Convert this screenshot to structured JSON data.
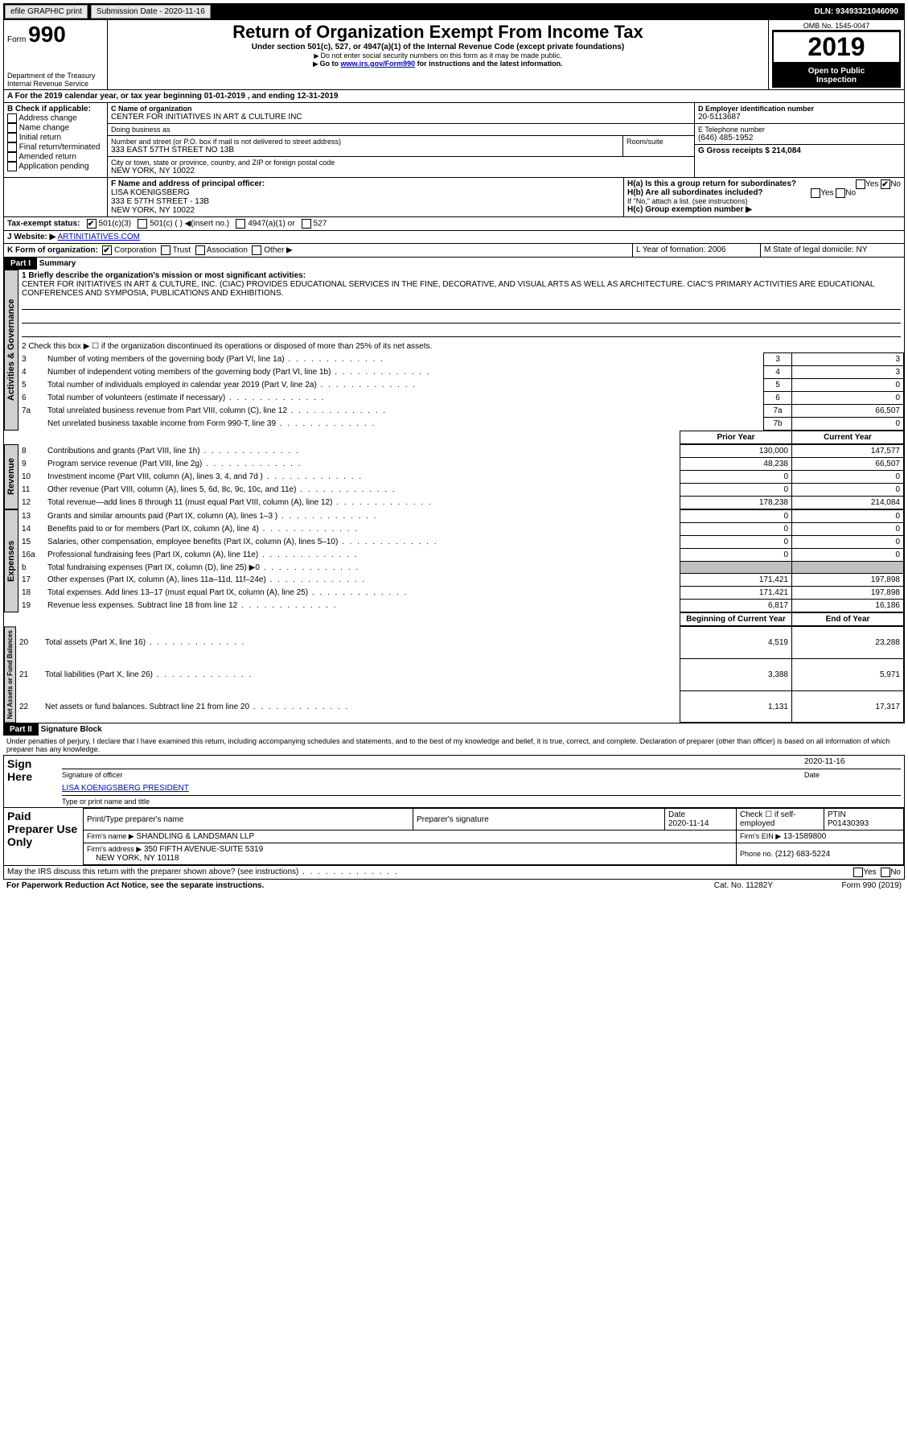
{
  "topbar": {
    "efile": "efile GRAPHIC print",
    "submission": "Submission Date - 2020-11-16",
    "dln": "DLN: 93493321046090"
  },
  "header": {
    "form_prefix": "Form",
    "form_number": "990",
    "title": "Return of Organization Exempt From Income Tax",
    "subtitle": "Under section 501(c), 527, or 4947(a)(1) of the Internal Revenue Code (except private foundations)",
    "note1": "Do not enter social security numbers on this form as it may be made public.",
    "note2_prefix": "Go to ",
    "note2_link": "www.irs.gov/Form990",
    "note2_suffix": " for instructions and the latest information.",
    "omb": "OMB No. 1545-0047",
    "year": "2019",
    "inspect1": "Open to Public",
    "inspect2": "Inspection",
    "dept": "Department of the Treasury",
    "irs": "Internal Revenue Service"
  },
  "line_a": "For the 2019 calendar year, or tax year beginning 01-01-2019   , and ending 12-31-2019",
  "box_b": {
    "label": "B Check if applicable:",
    "items": [
      "Address change",
      "Name change",
      "Initial return",
      "Final return/terminated",
      "Amended return",
      "Application pending"
    ]
  },
  "box_c": {
    "label": "C Name of organization",
    "org": "CENTER FOR INITIATIVES IN ART & CULTURE INC",
    "dba_label": "Doing business as",
    "dba": "",
    "street_label": "Number and street (or P.O. box if mail is not delivered to street address)",
    "street": "333 EAST 57TH STREET NO 13B",
    "room_label": "Room/suite",
    "city_label": "City or town, state or province, country, and ZIP or foreign postal code",
    "city": "NEW YORK, NY  10022"
  },
  "box_d": {
    "label": "D Employer identification number",
    "value": "20-5113687"
  },
  "box_e": {
    "label": "E Telephone number",
    "value": "(646) 485-1952"
  },
  "box_g": {
    "label": "G Gross receipts $ 214,084"
  },
  "box_f": {
    "label": "F  Name and address of principal officer:",
    "line1": "LISA KOENIGSBERG",
    "line2": "333 E 57TH STREET - 13B",
    "line3": "NEW YORK, NY  10022"
  },
  "box_h": {
    "a": "H(a)  Is this a group return for subordinates?",
    "b": "H(b)  Are all subordinates included?",
    "note": "If \"No,\" attach a list. (see instructions)",
    "c": "H(c)  Group exemption number ▶",
    "yes": "Yes",
    "no": "No"
  },
  "box_i": {
    "label": "Tax-exempt status:",
    "opt1": "501(c)(3)",
    "opt2": "501(c) (   ) ◀(insert no.)",
    "opt3": "4947(a)(1) or",
    "opt4": "527"
  },
  "box_j": {
    "label": "J",
    "website_label": "Website: ▶",
    "website": "ARTINITIATIVES.COM"
  },
  "box_k": {
    "label": "K Form of organization:",
    "opt1": "Corporation",
    "opt2": "Trust",
    "opt3": "Association",
    "opt4": "Other ▶"
  },
  "box_l": {
    "label": "L Year of formation: 2006"
  },
  "box_m": {
    "label": "M State of legal domicile: NY"
  },
  "part1": {
    "title": "Part I",
    "name": "Summary",
    "q1_label": "1  Briefly describe the organization's mission or most significant activities:",
    "q1_text": "CENTER FOR INITIATIVES IN ART & CULTURE, INC. (CIAC) PROVIDES EDUCATIONAL SERVICES IN THE FINE, DECORATIVE, AND VISUAL ARTS AS WELL AS ARCHITECTURE. CIAC'S PRIMARY ACTIVITIES ARE EDUCATIONAL CONFERENCES AND SYMPOSIA, PUBLICATIONS AND EXHIBITIONS.",
    "q2": "2  Check this box ▶ ☐  if the organization discontinued its operations or disposed of more than 25% of its net assets.",
    "rows_a": [
      {
        "num": "3",
        "label": "Number of voting members of the governing body (Part VI, line 1a)",
        "box": "3",
        "val": "3"
      },
      {
        "num": "4",
        "label": "Number of independent voting members of the governing body (Part VI, line 1b)",
        "box": "4",
        "val": "3"
      },
      {
        "num": "5",
        "label": "Total number of individuals employed in calendar year 2019 (Part V, line 2a)",
        "box": "5",
        "val": "0"
      },
      {
        "num": "6",
        "label": "Total number of volunteers (estimate if necessary)",
        "box": "6",
        "val": "0"
      },
      {
        "num": "7a",
        "label": "Total unrelated business revenue from Part VIII, column (C), line 12",
        "box": "7a",
        "val": "66,507"
      },
      {
        "num": "",
        "label": "Net unrelated business taxable income from Form 990-T, line 39",
        "box": "7b",
        "val": "0"
      }
    ],
    "col_prior": "Prior Year",
    "col_curr": "Current Year",
    "rows_r": [
      {
        "num": "8",
        "label": "Contributions and grants (Part VIII, line 1h)",
        "p": "130,000",
        "c": "147,577"
      },
      {
        "num": "9",
        "label": "Program service revenue (Part VIII, line 2g)",
        "p": "48,238",
        "c": "66,507"
      },
      {
        "num": "10",
        "label": "Investment income (Part VIII, column (A), lines 3, 4, and 7d )",
        "p": "0",
        "c": "0"
      },
      {
        "num": "11",
        "label": "Other revenue (Part VIII, column (A), lines 5, 6d, 8c, 9c, 10c, and 11e)",
        "p": "0",
        "c": "0"
      },
      {
        "num": "12",
        "label": "Total revenue—add lines 8 through 11 (must equal Part VIII, column (A), line 12)",
        "p": "178,238",
        "c": "214,084"
      }
    ],
    "rows_e": [
      {
        "num": "13",
        "label": "Grants and similar amounts paid (Part IX, column (A), lines 1–3 )",
        "p": "0",
        "c": "0"
      },
      {
        "num": "14",
        "label": "Benefits paid to or for members (Part IX, column (A), line 4)",
        "p": "0",
        "c": "0"
      },
      {
        "num": "15",
        "label": "Salaries, other compensation, employee benefits (Part IX, column (A), lines 5–10)",
        "p": "0",
        "c": "0"
      },
      {
        "num": "16a",
        "label": "Professional fundraising fees (Part IX, column (A), line 11e)",
        "p": "0",
        "c": "0"
      },
      {
        "num": "b",
        "label": "Total fundraising expenses (Part IX, column (D), line 25) ▶0",
        "p": "",
        "c": "",
        "gray": true
      },
      {
        "num": "17",
        "label": "Other expenses (Part IX, column (A), lines 11a–11d, 11f–24e)",
        "p": "171,421",
        "c": "197,898"
      },
      {
        "num": "18",
        "label": "Total expenses. Add lines 13–17 (must equal Part IX, column (A), line 25)",
        "p": "171,421",
        "c": "197,898"
      },
      {
        "num": "19",
        "label": "Revenue less expenses. Subtract line 18 from line 12",
        "p": "6,817",
        "c": "16,186"
      }
    ],
    "col_beg": "Beginning of Current Year",
    "col_end": "End of Year",
    "rows_n": [
      {
        "num": "20",
        "label": "Total assets (Part X, line 16)",
        "p": "4,519",
        "c": "23,288"
      },
      {
        "num": "21",
        "label": "Total liabilities (Part X, line 26)",
        "p": "3,388",
        "c": "5,971"
      },
      {
        "num": "22",
        "label": "Net assets or fund balances. Subtract line 21 from line 20",
        "p": "1,131",
        "c": "17,317"
      }
    ],
    "side_a": "Activities & Governance",
    "side_r": "Revenue",
    "side_e": "Expenses",
    "side_n": "Net Assets or Fund Balances"
  },
  "part2": {
    "title": "Part II",
    "name": "Signature Block",
    "decl": "Under penalties of perjury, I declare that I have examined this return, including accompanying schedules and statements, and to the best of my knowledge and belief, it is true, correct, and complete. Declaration of preparer (other than officer) is based on all information of which preparer has any knowledge.",
    "sign_here": "Sign Here",
    "sig_officer": "Signature of officer",
    "sig_date": "2020-11-16",
    "date_label": "Date",
    "officer_name": "LISA KOENIGSBERG  PRESIDENT",
    "officer_sub": "Type or print name and title",
    "paid": "Paid Preparer Use Only",
    "prep_name_label": "Print/Type preparer's name",
    "prep_sig_label": "Preparer's signature",
    "prep_date_label": "Date",
    "prep_date": "2020-11-14",
    "check_self": "Check ☐ if self-employed",
    "ptin_label": "PTIN",
    "ptin": "P01430393",
    "firm_name_label": "Firm's name   ▶",
    "firm_name": "SHANDLING & LANDSMAN LLP",
    "firm_ein_label": "Firm's EIN ▶",
    "firm_ein": "13-1589800",
    "firm_addr_label": "Firm's address ▶",
    "firm_addr1": "350 FIFTH AVENUE-SUITE 5319",
    "firm_addr2": "NEW YORK, NY  10118",
    "phone_label": "Phone no.",
    "phone": "(212) 683-5224",
    "discuss": "May the IRS discuss this return with the preparer shown above? (see instructions)",
    "yes": "Yes",
    "no": "No"
  },
  "footer": {
    "left": "For Paperwork Reduction Act Notice, see the separate instructions.",
    "mid": "Cat. No. 11282Y",
    "right": "Form 990 (2019)"
  }
}
